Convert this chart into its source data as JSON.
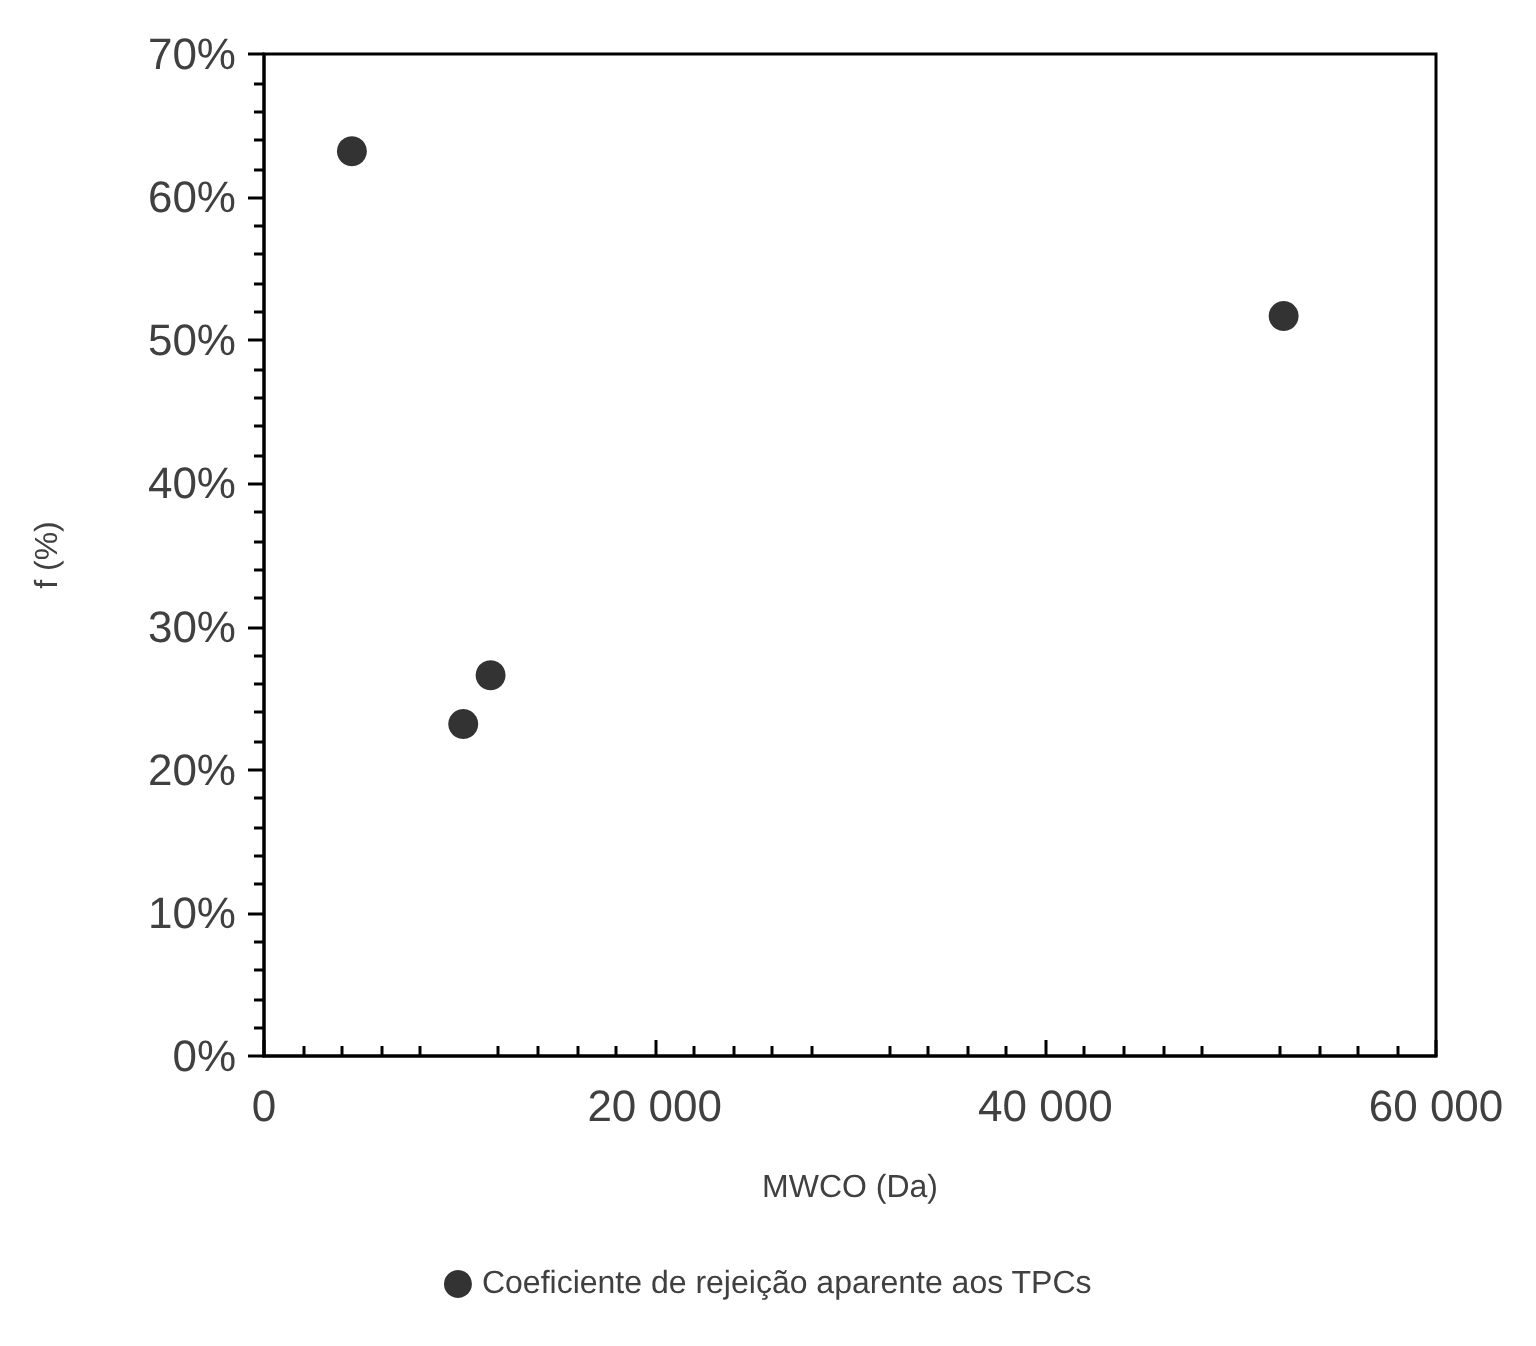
{
  "chart_data": {
    "type": "scatter",
    "xlabel": "MWCO (Da)",
    "ylabel": "f (%)",
    "x": [
      4500,
      10200,
      11600,
      52200
    ],
    "series": [
      {
        "name": "Coeficiente de rejeição aparente aos TPCs",
        "color": "#000000",
        "values": [
          63.2,
          23.2,
          26.6,
          51.7
        ]
      }
    ],
    "xlim": [
      0,
      60000
    ],
    "xticks": [
      0,
      {
        "value": 20000,
        "label": "20 000"
      },
      {
        "value": 40000,
        "label": "40 000"
      },
      {
        "value": 60000,
        "label": "60 000"
      }
    ],
    "ylim": [
      0,
      70
    ],
    "yticks": [
      {
        "value": 0,
        "label": "0%"
      },
      {
        "value": 10,
        "label": "10%"
      },
      {
        "value": 20,
        "label": "20%"
      },
      {
        "value": 30,
        "label": "30%"
      },
      {
        "value": 40,
        "label": "40%"
      },
      {
        "value": 50,
        "label": "50%"
      },
      {
        "value": 60,
        "label": "60%"
      },
      {
        "value": 70,
        "label": "70%"
      }
    ],
    "grid": false,
    "legend": "bottom",
    "marker": "circle"
  }
}
